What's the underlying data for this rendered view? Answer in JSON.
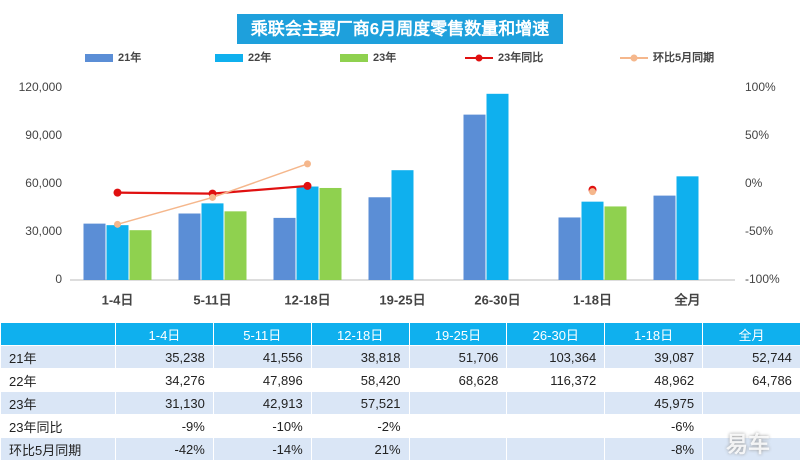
{
  "chart_data": {
    "type": "bar",
    "title": "乘联会主要厂商6月周度零售数量和增速",
    "categories": [
      "1-4日",
      "5-11日",
      "12-18日",
      "19-25日",
      "26-30日",
      "1-18日",
      "全月"
    ],
    "series": [
      {
        "name": "21年",
        "type": "bar",
        "color": "#5b8ed6",
        "values": [
          35238,
          41556,
          38818,
          51706,
          103364,
          39087,
          52744
        ],
        "value_labels": [
          "35,238",
          "41,556",
          "38,818",
          "51,706",
          "103,364",
          "39,087",
          "52,744"
        ]
      },
      {
        "name": "22年",
        "type": "bar",
        "color": "#0fb0ee",
        "values": [
          34276,
          47896,
          58420,
          68628,
          116372,
          48962,
          64786
        ],
        "value_labels": [
          "34,276",
          "47,896",
          "58,420",
          "68,628",
          "116,372",
          "48,962",
          "64,786"
        ]
      },
      {
        "name": "23年",
        "type": "bar",
        "color": "#8fd14f",
        "values": [
          31130,
          42913,
          57521,
          null,
          null,
          45975,
          null
        ],
        "value_labels": [
          "31,130",
          "42,913",
          "57,521",
          null,
          null,
          "45,975",
          null
        ]
      },
      {
        "name": "23年同比",
        "type": "line",
        "axis": "y2",
        "color": "#e01010",
        "values": [
          -9,
          -10,
          -2,
          null,
          null,
          -6,
          null
        ],
        "value_labels": [
          "-9%",
          "-10%",
          "-2%",
          null,
          null,
          "-6%",
          null
        ]
      },
      {
        "name": "环比5月同期",
        "type": "line",
        "axis": "y2",
        "color": "#f5b78c",
        "values": [
          -42,
          -14,
          21,
          null,
          null,
          -8,
          null
        ],
        "value_labels": [
          "-42%",
          "-14%",
          "21%",
          null,
          null,
          "-8%",
          null
        ]
      }
    ],
    "ylim": [
      0,
      120000
    ],
    "yticks": [
      0,
      {
        "value": 30000,
        "label": "30,000"
      },
      {
        "value": 60000,
        "label": "60,000"
      },
      {
        "value": 90000,
        "label": "90,000"
      },
      {
        "value": 120000,
        "label": "120,000"
      }
    ],
    "y2lim": [
      -100,
      100
    ],
    "y2ticks": [
      {
        "value": -100,
        "label": "-100%"
      },
      {
        "value": -50,
        "label": "-50%"
      },
      {
        "value": 0,
        "label": "0%"
      },
      {
        "value": 50,
        "label": "50%"
      },
      {
        "value": 100,
        "label": "100%"
      }
    ],
    "grid": false,
    "legend": "top",
    "watermark": "易车"
  }
}
